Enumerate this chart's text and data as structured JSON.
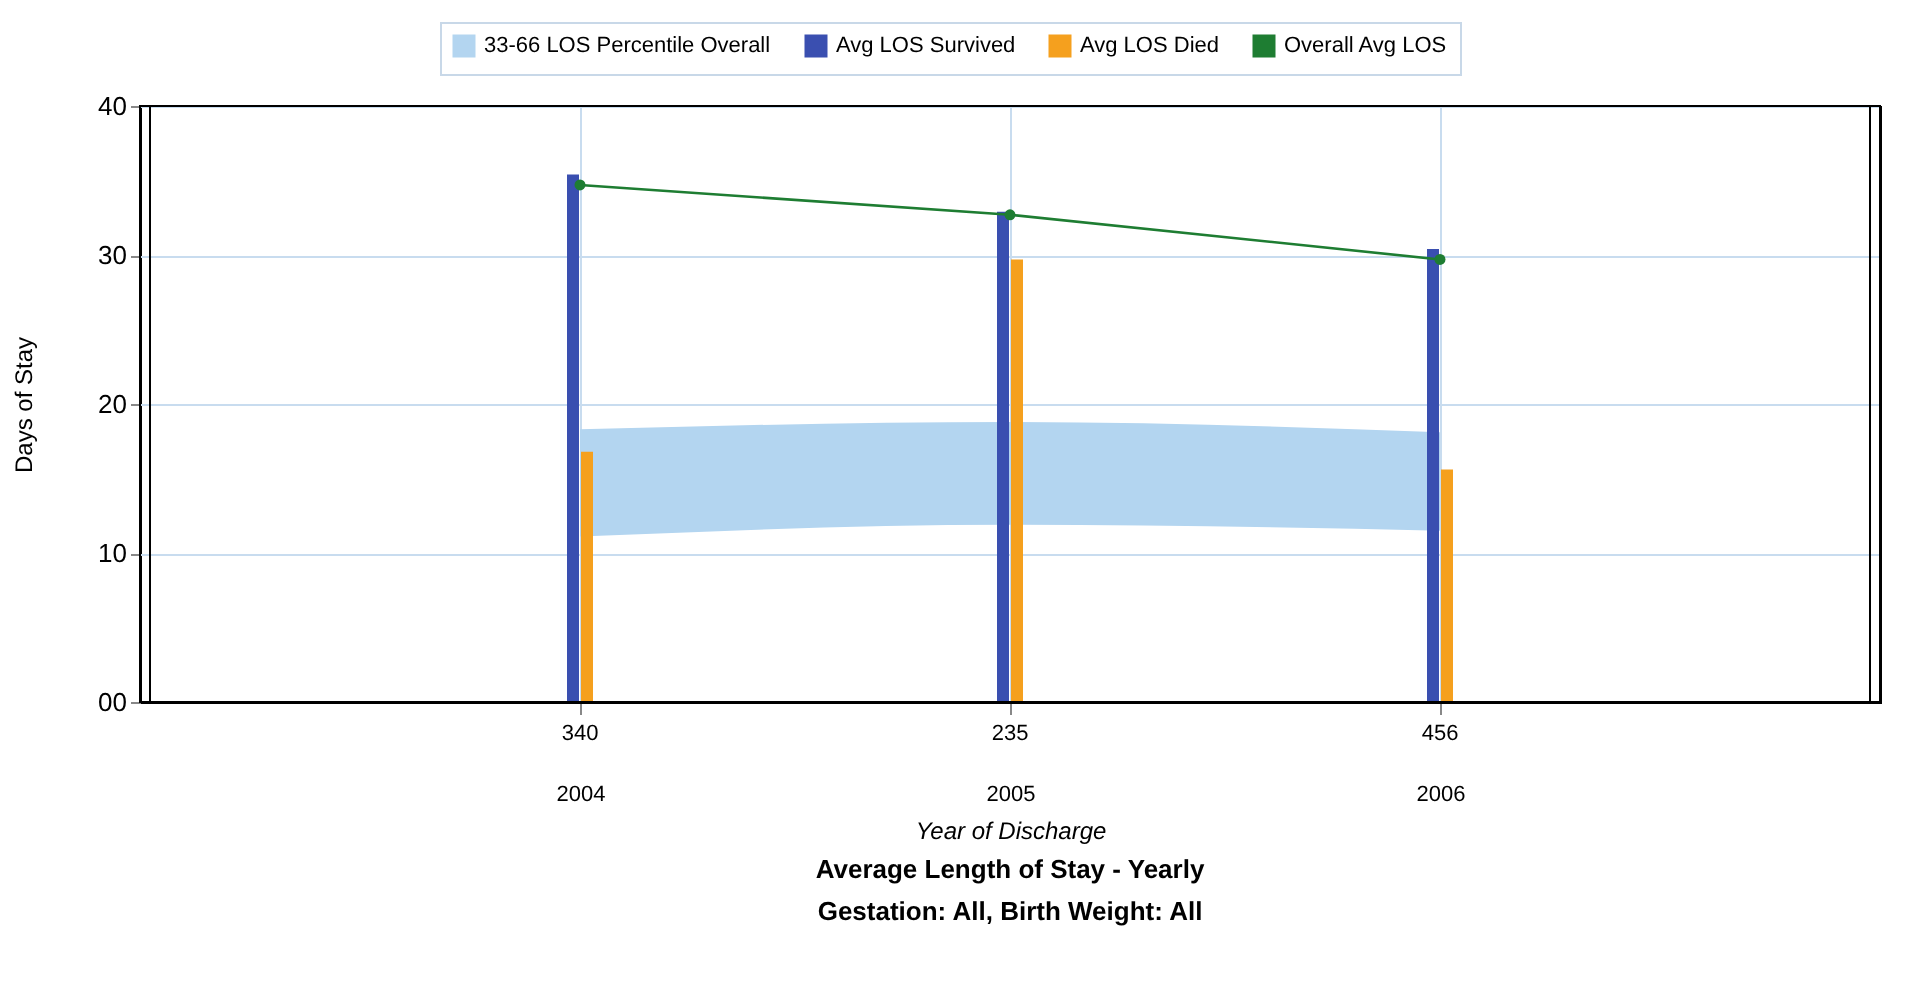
{
  "chart_data": {
    "type": "bar",
    "title": "Average Length of Stay - Yearly",
    "subtitle": "Gestation: All, Birth Weight: All",
    "xlabel": "Year of Discharge",
    "ylabel": "Days of Stay",
    "x": [
      2004,
      2005,
      2006
    ],
    "xlim": [
      2003,
      2007
    ],
    "xticks": [
      2004,
      2005,
      2006
    ],
    "ylim": [
      0,
      40
    ],
    "yticks": [
      {
        "value": 0,
        "label": "00"
      },
      10,
      20,
      30,
      40
    ],
    "series": [
      {
        "name": "33-66 LOS Percentile Overall",
        "type": "area",
        "color": "#b3d5f0",
        "values": [
          null,
          null,
          null
        ],
        "lower": [
          11.1,
          11.9,
          11.5
        ],
        "upper": [
          18.3,
          18.8,
          18.1
        ]
      },
      {
        "name": "Avg LOS Survived",
        "color": "#3a4fb0",
        "values": [
          35.4,
          32.9,
          30.4
        ]
      },
      {
        "name": "Avg LOS Died",
        "color": "#f5a01e",
        "values": [
          16.8,
          29.7,
          15.6
        ]
      },
      {
        "name": "Overall Avg LOS",
        "type": "line",
        "color": "#1e7d32",
        "marker": "circle",
        "values": [
          34.7,
          32.7,
          29.7
        ]
      }
    ],
    "annotations": [
      "340",
      "235",
      "456"
    ],
    "grid": true,
    "legend": "top"
  }
}
